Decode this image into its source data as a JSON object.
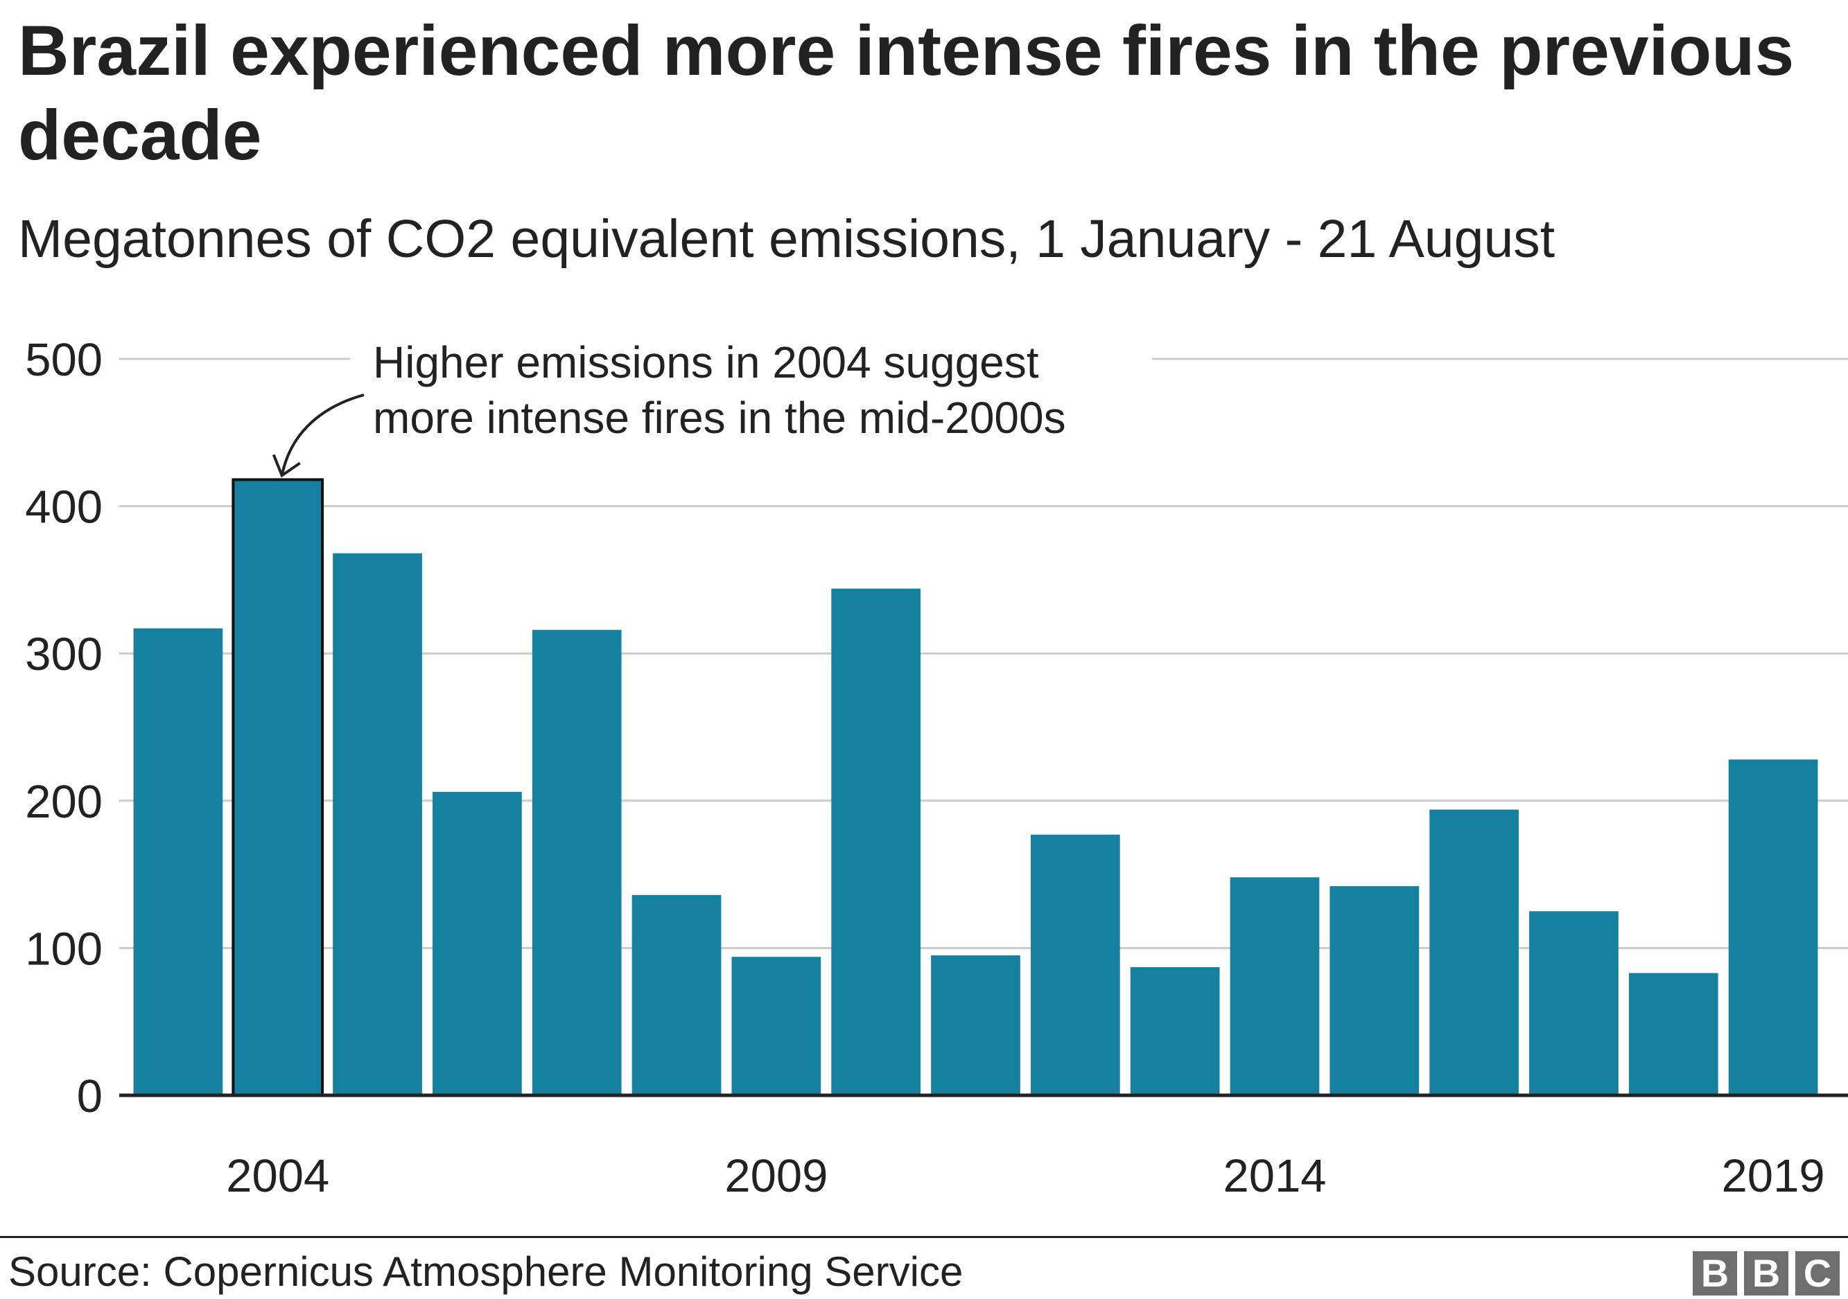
{
  "title": "Brazil experienced more intense fires in the previous decade",
  "subtitle": "Megatonnes of CO2 equivalent emissions, 1 January - 21 August",
  "source": "Source: Copernicus Atmosphere Monitoring Service",
  "logo": [
    "B",
    "B",
    "C"
  ],
  "colors": {
    "bar": "#1580a0",
    "highlight_outline": "#111111",
    "grid": "#cccccc",
    "axis": "#222222",
    "text": "#222222"
  },
  "chart_data": {
    "type": "bar",
    "categories": [
      "2003",
      "2004",
      "2005",
      "2006",
      "2007",
      "2008",
      "2009",
      "2010",
      "2011",
      "2012",
      "2013",
      "2014",
      "2015",
      "2016",
      "2017",
      "2018",
      "2019"
    ],
    "values": [
      317,
      418,
      368,
      206,
      316,
      136,
      94,
      344,
      95,
      177,
      87,
      148,
      142,
      194,
      125,
      83,
      228
    ],
    "x_tick_labels": [
      "2004",
      "2009",
      "2014",
      "2019"
    ],
    "y_ticks": [
      0,
      100,
      200,
      300,
      400,
      500
    ],
    "ylim": [
      0,
      500
    ],
    "grid": true,
    "highlight": "2004",
    "annotation": {
      "target": "2004",
      "lines": [
        "Higher emissions in 2004 suggest",
        "more intense fires in the mid-2000s"
      ]
    }
  }
}
